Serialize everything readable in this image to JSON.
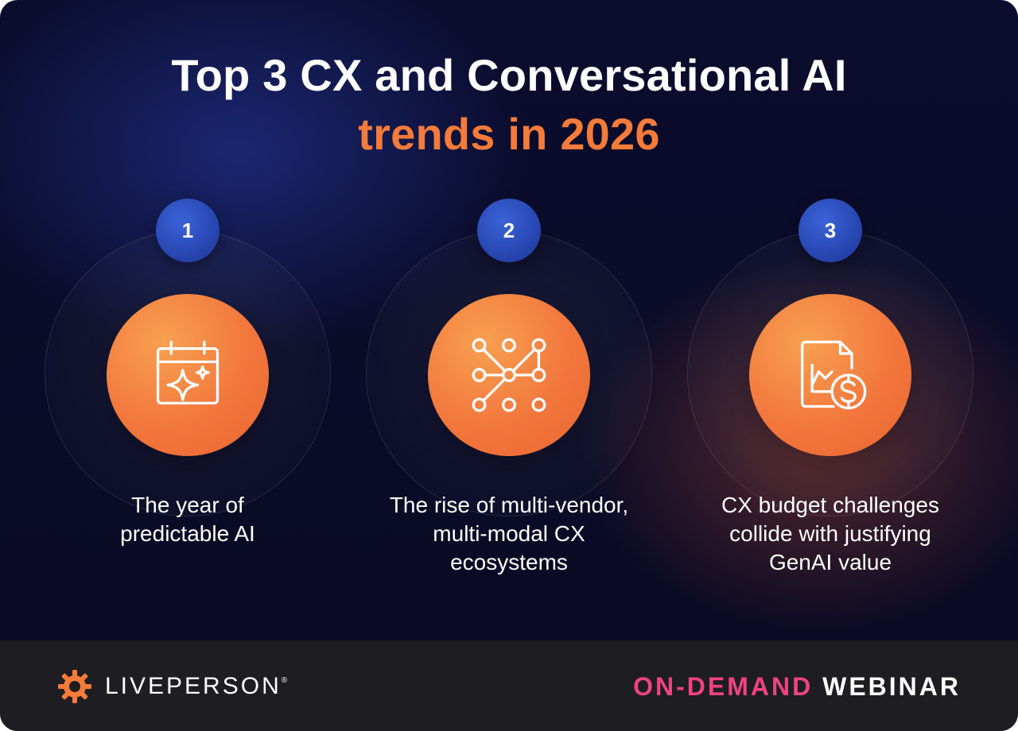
{
  "header": {
    "title_line1": "Top 3 CX and Conversational AI",
    "title_line2": "trends in 2026"
  },
  "trends": [
    {
      "number": "1",
      "icon": "calendar-sparkle-icon",
      "caption": [
        "The year of",
        "predictable AI"
      ]
    },
    {
      "number": "2",
      "icon": "network-nodes-icon",
      "caption": [
        "The rise of multi-vendor,",
        "multi-modal CX",
        "ecosystems"
      ]
    },
    {
      "number": "3",
      "icon": "chart-dollar-document-icon",
      "caption": [
        "CX budget challenges",
        "collide with justifying",
        "GenAI value"
      ]
    }
  ],
  "footer": {
    "brand": "LIVEPERSON",
    "brand_mark": "®",
    "tag_highlight": "ON-DEMAND",
    "tag_rest": "WEBINAR"
  },
  "colors": {
    "accent_orange": "#f47b3a",
    "badge_blue": "#2f52c4",
    "tag_pink": "#f0437e",
    "footer_bg": "#1e1e22"
  }
}
